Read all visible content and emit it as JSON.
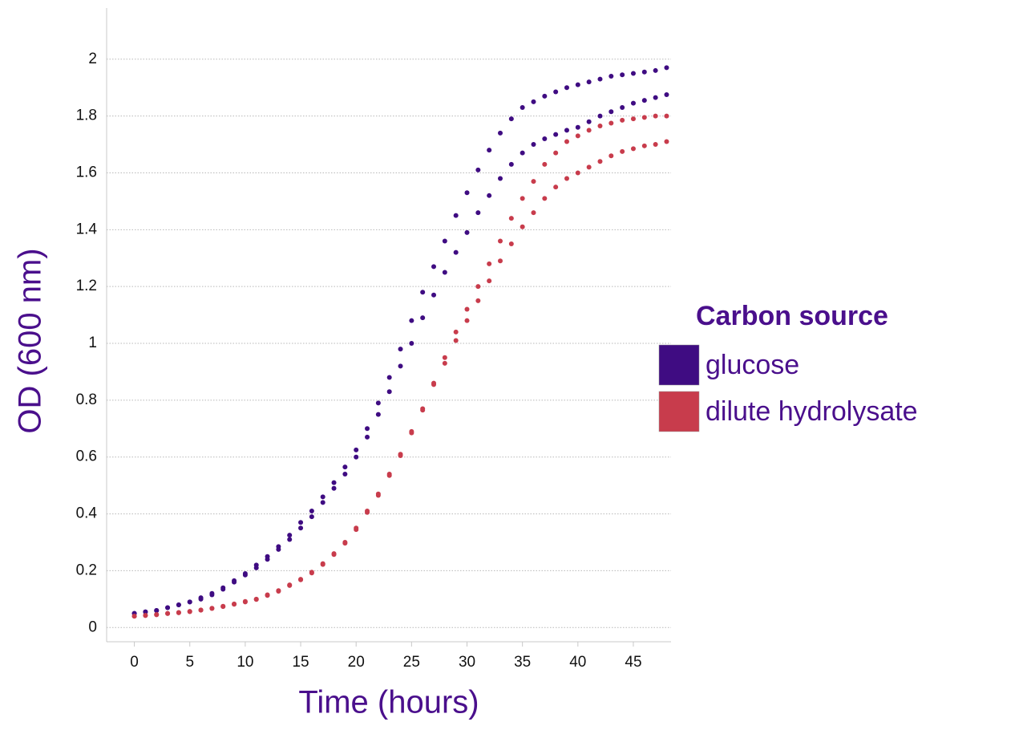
{
  "chart_data": {
    "type": "scatter",
    "x_label": "Time (hours)",
    "y_label": "OD (600 nm)",
    "legend_title": "Carbon source",
    "legend_position": "right",
    "grid": true,
    "xlim": [
      -2.5,
      48.4
    ],
    "xticks": [
      0,
      5,
      10,
      15,
      20,
      25,
      30,
      35,
      40,
      45
    ],
    "ylim": [
      -0.05,
      2.18
    ],
    "yticks": [
      0,
      0.2,
      0.4,
      0.6,
      0.8,
      1,
      1.2,
      1.4,
      1.6,
      1.8,
      2
    ],
    "x": [
      0,
      1,
      2,
      3,
      4,
      5,
      6,
      7,
      8,
      9,
      10,
      11,
      12,
      13,
      14,
      15,
      16,
      17,
      18,
      19,
      20,
      21,
      22,
      23,
      24,
      25,
      26,
      27,
      28,
      29,
      30,
      31,
      32,
      33,
      34,
      35,
      36,
      37,
      38,
      39,
      40,
      41,
      42,
      43,
      44,
      45,
      46,
      47,
      48,
      0,
      1,
      2,
      3,
      4,
      5,
      6,
      7,
      8,
      9,
      10,
      11,
      12,
      13,
      14,
      15,
      16,
      17,
      18,
      19,
      20,
      21,
      22,
      23,
      24,
      25,
      26,
      27,
      28,
      29,
      30,
      31,
      32,
      33,
      34,
      35,
      36,
      37,
      38,
      39,
      40,
      41,
      42,
      43,
      44,
      45,
      46,
      47,
      48
    ],
    "series": [
      {
        "name": "glucose",
        "color": "#3f0c82",
        "values": [
          0.05,
          0.055,
          0.06,
          0.07,
          0.08,
          0.09,
          0.105,
          0.12,
          0.14,
          0.165,
          0.19,
          0.22,
          0.25,
          0.285,
          0.325,
          0.37,
          0.41,
          0.46,
          0.51,
          0.565,
          0.625,
          0.7,
          0.79,
          0.88,
          0.98,
          1.08,
          1.18,
          1.27,
          1.36,
          1.45,
          1.53,
          1.61,
          1.68,
          1.74,
          1.79,
          1.83,
          1.85,
          1.87,
          1.885,
          1.9,
          1.91,
          1.92,
          1.93,
          1.94,
          1.945,
          1.95,
          1.955,
          1.96,
          1.97,
          0.05,
          0.055,
          0.06,
          0.07,
          0.08,
          0.09,
          0.1,
          0.115,
          0.135,
          0.16,
          0.185,
          0.21,
          0.24,
          0.275,
          0.31,
          0.35,
          0.39,
          0.44,
          0.49,
          0.54,
          0.6,
          0.67,
          0.75,
          0.83,
          0.92,
          1.0,
          1.09,
          1.17,
          1.25,
          1.32,
          1.39,
          1.46,
          1.52,
          1.58,
          1.63,
          1.67,
          1.7,
          1.72,
          1.735,
          1.75,
          1.76,
          1.78,
          1.8,
          1.815,
          1.83,
          1.845,
          1.855,
          1.865,
          1.875
        ]
      },
      {
        "name": "dilute hydrolysate",
        "color": "#c83c4c",
        "values": [
          0.04,
          0.043,
          0.046,
          0.05,
          0.053,
          0.057,
          0.062,
          0.068,
          0.075,
          0.083,
          0.092,
          0.1,
          0.115,
          0.13,
          0.15,
          0.17,
          0.195,
          0.225,
          0.26,
          0.3,
          0.35,
          0.41,
          0.47,
          0.54,
          0.61,
          0.69,
          0.77,
          0.86,
          0.95,
          1.04,
          1.12,
          1.2,
          1.28,
          1.36,
          1.44,
          1.51,
          1.57,
          1.63,
          1.67,
          1.71,
          1.73,
          1.75,
          1.765,
          1.775,
          1.785,
          1.79,
          1.795,
          1.8,
          1.8,
          0.04,
          0.042,
          0.045,
          0.049,
          0.052,
          0.056,
          0.061,
          0.067,
          0.074,
          0.082,
          0.09,
          0.099,
          0.113,
          0.128,
          0.148,
          0.168,
          0.192,
          0.222,
          0.257,
          0.297,
          0.345,
          0.405,
          0.465,
          0.535,
          0.605,
          0.685,
          0.765,
          0.855,
          0.93,
          1.01,
          1.08,
          1.15,
          1.22,
          1.29,
          1.35,
          1.41,
          1.46,
          1.51,
          1.55,
          1.58,
          1.6,
          1.62,
          1.64,
          1.66,
          1.675,
          1.685,
          1.695,
          1.7,
          1.71
        ]
      }
    ]
  }
}
